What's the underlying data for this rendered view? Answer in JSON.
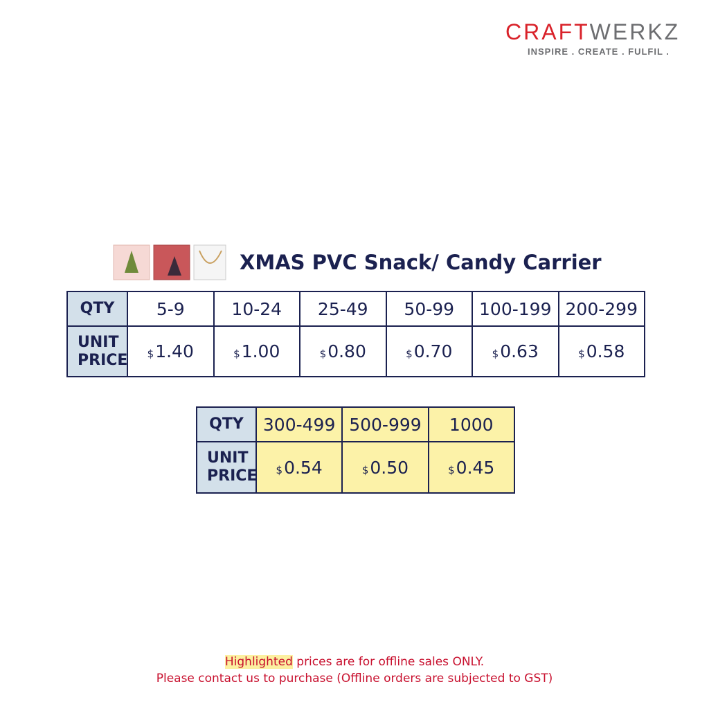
{
  "brand": {
    "part1": "CRAFT",
    "part2": "WERKZ",
    "tagline": "INSPIRE . CREATE . FULFIL ."
  },
  "title": "XMAS PVC Snack/ Candy Carrier",
  "currency": "$",
  "tables": [
    {
      "qty_label": "QTY",
      "price_label": "UNIT PRICE",
      "highlighted": false,
      "quantities": [
        "5-9",
        "10-24",
        "25-49",
        "50-99",
        "100-199",
        "200-299"
      ],
      "prices": [
        "1.40",
        "1.00",
        "0.80",
        "0.70",
        "0.63",
        "0.58"
      ]
    },
    {
      "qty_label": "QTY",
      "price_label": "UNIT PRICE",
      "highlighted": true,
      "quantities": [
        "300-499",
        "500-999",
        "1000"
      ],
      "prices": [
        "0.54",
        "0.50",
        "0.45"
      ]
    }
  ],
  "footer": {
    "highlight": "Highlighted",
    "line1_rest": "prices are for offline sales ONLY.",
    "line2": "Please contact us to purchase (Offline orders are subjected to GST)"
  }
}
